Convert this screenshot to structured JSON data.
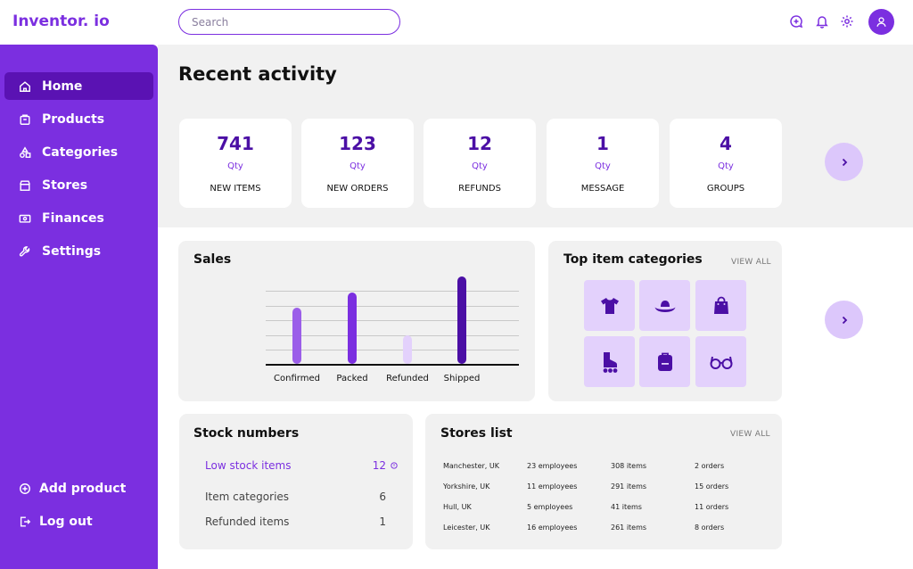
{
  "app": {
    "logo": "Inventor. io"
  },
  "search": {
    "placeholder": "Search"
  },
  "header": {
    "icons": [
      "chat-plus-icon",
      "bell-icon",
      "gear-icon",
      "user-icon"
    ]
  },
  "sidebar": {
    "items": [
      {
        "label": "Home",
        "icon": "home-icon",
        "active": true
      },
      {
        "label": "Products",
        "icon": "box-icon"
      },
      {
        "label": "Categories",
        "icon": "shapes-icon"
      },
      {
        "label": "Stores",
        "icon": "store-icon"
      },
      {
        "label": "Finances",
        "icon": "money-icon"
      },
      {
        "label": "Settings",
        "icon": "wrench-icon"
      }
    ],
    "add_product": "Add product",
    "logout": "Log out"
  },
  "recent": {
    "title": "Recent activity",
    "cards": [
      {
        "value": "741",
        "unit": "Qty",
        "label": "NEW ITEMS"
      },
      {
        "value": "123",
        "unit": "Qty",
        "label": "NEW ORDERS"
      },
      {
        "value": "12",
        "unit": "Qty",
        "label": "REFUNDS"
      },
      {
        "value": "1",
        "unit": "Qty",
        "label": "MESSAGE"
      },
      {
        "value": "4",
        "unit": "Qty",
        "label": "GROUPS"
      }
    ]
  },
  "sales": {
    "title": "Sales",
    "chart_data": {
      "type": "bar",
      "categories": [
        "Confirmed",
        "Packed",
        "Refunded",
        "Shipped"
      ],
      "values": [
        64,
        82,
        33,
        100
      ],
      "colors": [
        "#9b5ee9",
        "#7b2fe0",
        "#e3d1fc",
        "#4b0fa5"
      ],
      "ylim": [
        0,
        100
      ],
      "grid": true
    }
  },
  "top_categories": {
    "title": "Top item categories",
    "view_all": "VIEW ALL",
    "icons": [
      "tshirt-icon",
      "hat-icon",
      "bag-icon",
      "roller-skate-icon",
      "backpack-icon",
      "glasses-icon"
    ]
  },
  "stock": {
    "title": "Stock numbers",
    "rows": [
      {
        "label": "Low stock items",
        "value": "12"
      },
      {
        "label": "Item categories",
        "value": "6"
      },
      {
        "label": "Refunded items",
        "value": "1"
      }
    ]
  },
  "stores": {
    "title": "Stores list",
    "view_all": "VIEW ALL",
    "rows": [
      [
        "Manchester, UK",
        "23 employees",
        "308 items",
        "2 orders"
      ],
      [
        "Yorkshire, UK",
        "11 employees",
        "291 items",
        "15 orders"
      ],
      [
        "Hull, UK",
        "5 employees",
        "41 items",
        "11 orders"
      ],
      [
        "Leicester, UK",
        "16 employees",
        "261 items",
        "8 orders"
      ]
    ]
  },
  "colors": {
    "accent": "#7b2fe0",
    "accent_dark": "#4b0fa5",
    "accent_light": "#e3d1fc"
  }
}
